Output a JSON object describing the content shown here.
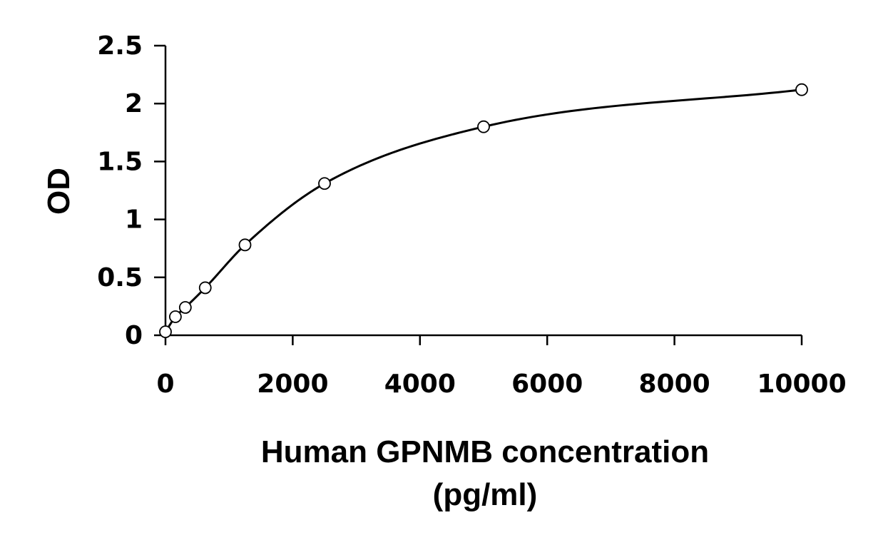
{
  "chart_data": {
    "type": "scatter",
    "title": "",
    "xlabel": "Human GPNMB concentration",
    "xlabel_unit": "(pg/ml)",
    "ylabel": "OD",
    "xlim": [
      0,
      10000
    ],
    "ylim": [
      0,
      2.5
    ],
    "x_ticks": [
      "0",
      "2000",
      "4000",
      "6000",
      "8000",
      "10000"
    ],
    "y_ticks": [
      "0",
      "0.5",
      "1",
      "1.5",
      "2",
      "2.5"
    ],
    "grid": false,
    "series": [
      {
        "marker": "open-circle",
        "line": "smooth-fit",
        "color": "#000000",
        "x": [
          0,
          156,
          312,
          625,
          1250,
          2500,
          5000,
          10000
        ],
        "y": [
          0.03,
          0.16,
          0.24,
          0.41,
          0.78,
          1.31,
          1.8,
          2.12
        ]
      }
    ]
  }
}
